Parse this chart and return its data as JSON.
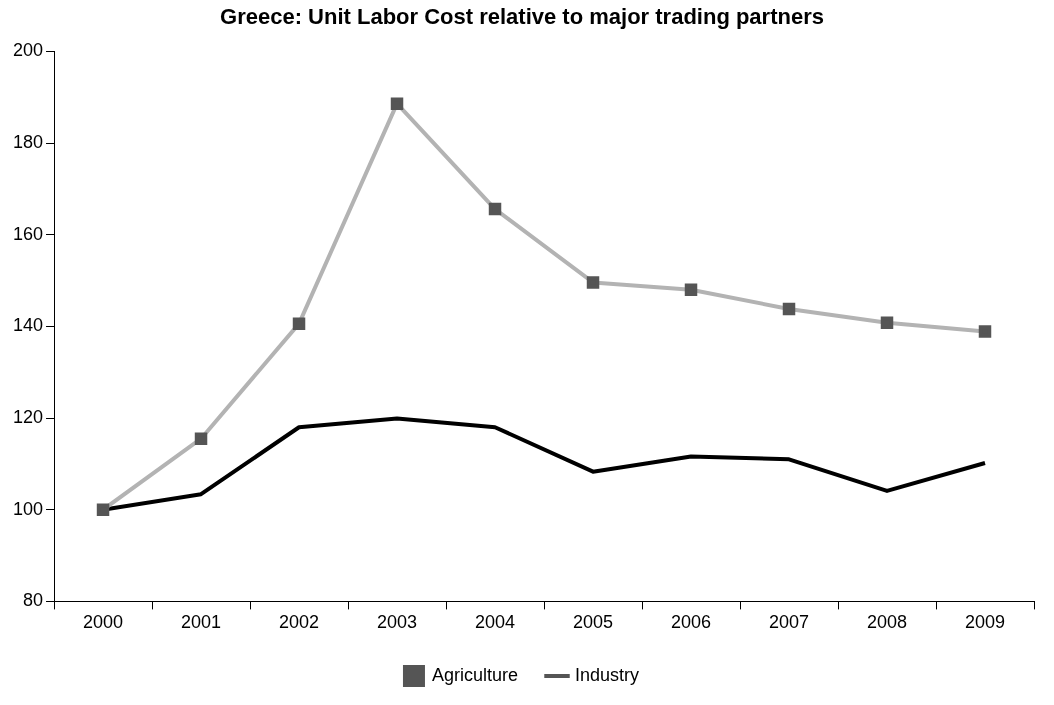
{
  "chart_data": {
    "type": "line",
    "title": "Greece: Unit Labor Cost relative to major trading partners",
    "categories": [
      "2000",
      "2001",
      "2002",
      "2003",
      "2004",
      "2005",
      "2006",
      "2007",
      "2008",
      "2009"
    ],
    "series": [
      {
        "name": "Industry",
        "color": "#000000",
        "marker": "none",
        "values": [
          100,
          103.4,
          118,
          119.9,
          118,
          108.3,
          111.6,
          111,
          104.1,
          110.2
        ]
      },
      {
        "name": "Agriculture",
        "color": "#b3b3b3",
        "marker": "square",
        "values": [
          100,
          115.5,
          140.6,
          188.6,
          165.6,
          149.6,
          148,
          143.8,
          140.8,
          138.9
        ]
      }
    ],
    "ylim": [
      80,
      200
    ],
    "yticks": [
      80,
      100,
      120,
      140,
      160,
      180,
      200
    ],
    "grid": false,
    "legend": "bottom",
    "line_style": "solid"
  }
}
